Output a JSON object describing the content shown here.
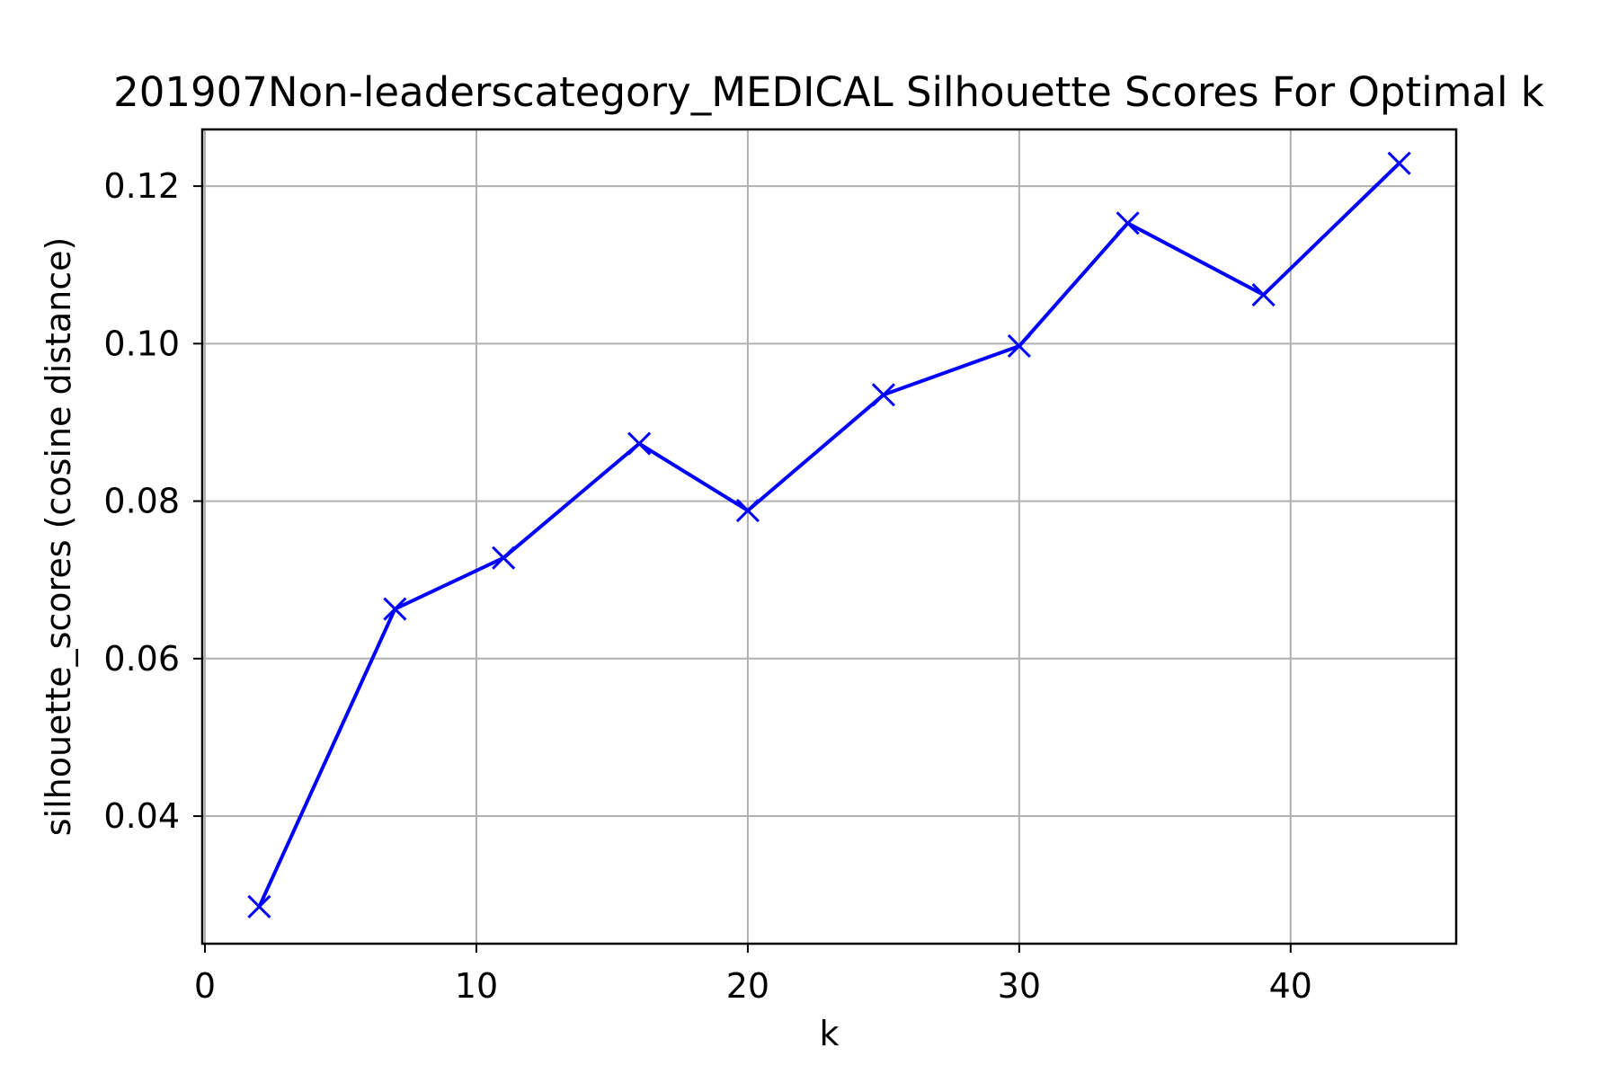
{
  "chart_data": {
    "type": "line",
    "title": "201907Non-leaderscategory_MEDICAL Silhouette Scores For Optimal k",
    "xlabel": "k",
    "ylabel": "silhouette_scores (cosine distance)",
    "xlim": [
      -0.1,
      46.1
    ],
    "ylim": [
      0.0238,
      0.1272
    ],
    "xticks": [
      0,
      10,
      20,
      30,
      40
    ],
    "xtick_labels": [
      "0",
      "10",
      "20",
      "30",
      "40"
    ],
    "yticks": [
      0.04,
      0.06,
      0.08,
      0.1,
      0.12
    ],
    "ytick_labels": [
      "0.04",
      "0.06",
      "0.08",
      "0.10",
      "0.12"
    ],
    "grid": true,
    "legend": false,
    "series": [
      {
        "color": "#0000ff",
        "marker": "x",
        "x": [
          2,
          7,
          11,
          16,
          20,
          25,
          30,
          34,
          39,
          44
        ],
        "y": [
          0.0285,
          0.0663,
          0.0728,
          0.0873,
          0.0788,
          0.0935,
          0.0997,
          0.1153,
          0.1062,
          0.1229
        ]
      }
    ]
  }
}
